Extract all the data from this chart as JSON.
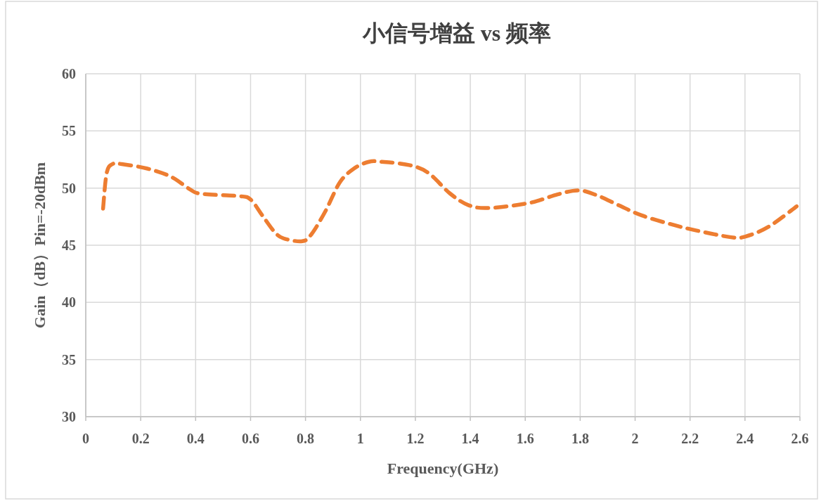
{
  "chart_data": {
    "type": "line",
    "title": "小信号增益 vs 频率",
    "xlabel": "Frequency(GHz)",
    "ylabel": "Gain（dB）Pin=-20dBm",
    "xlim": [
      0,
      2.6
    ],
    "xticks": [
      0,
      0.2,
      0.4,
      0.6,
      0.8,
      1,
      1.2,
      1.4,
      1.6,
      1.8,
      2,
      2.2,
      2.4,
      2.6
    ],
    "ylim": [
      30,
      60
    ],
    "yticks": [
      30,
      35,
      40,
      45,
      50,
      55,
      60
    ],
    "grid": true,
    "line_style": "dashed",
    "marker": "none",
    "series": [
      {
        "color": "#ed7d31",
        "x": [
          0.063,
          0.076,
          0.097,
          0.131,
          0.225,
          0.31,
          0.379,
          0.42,
          0.558,
          0.6,
          0.643,
          0.686,
          0.72,
          0.788,
          0.822,
          0.873,
          0.925,
          0.976,
          1.031,
          1.078,
          1.18,
          1.249,
          1.325,
          1.394,
          1.47,
          1.615,
          1.718,
          1.795,
          1.863,
          1.94,
          2.025,
          2.136,
          2.221,
          2.349,
          2.4,
          2.485,
          2.588
        ],
        "values": [
          48.2,
          51.3,
          52.1,
          52.1,
          51.7,
          51.0,
          49.9,
          49.5,
          49.3,
          49.0,
          47.6,
          46.2,
          45.6,
          45.35,
          45.97,
          48.0,
          50.5,
          51.7,
          52.3,
          52.3,
          52.0,
          51.3,
          49.55,
          48.5,
          48.26,
          48.7,
          49.45,
          49.8,
          49.35,
          48.5,
          47.6,
          46.8,
          46.3,
          45.7,
          45.75,
          46.6,
          48.4
        ]
      }
    ]
  }
}
